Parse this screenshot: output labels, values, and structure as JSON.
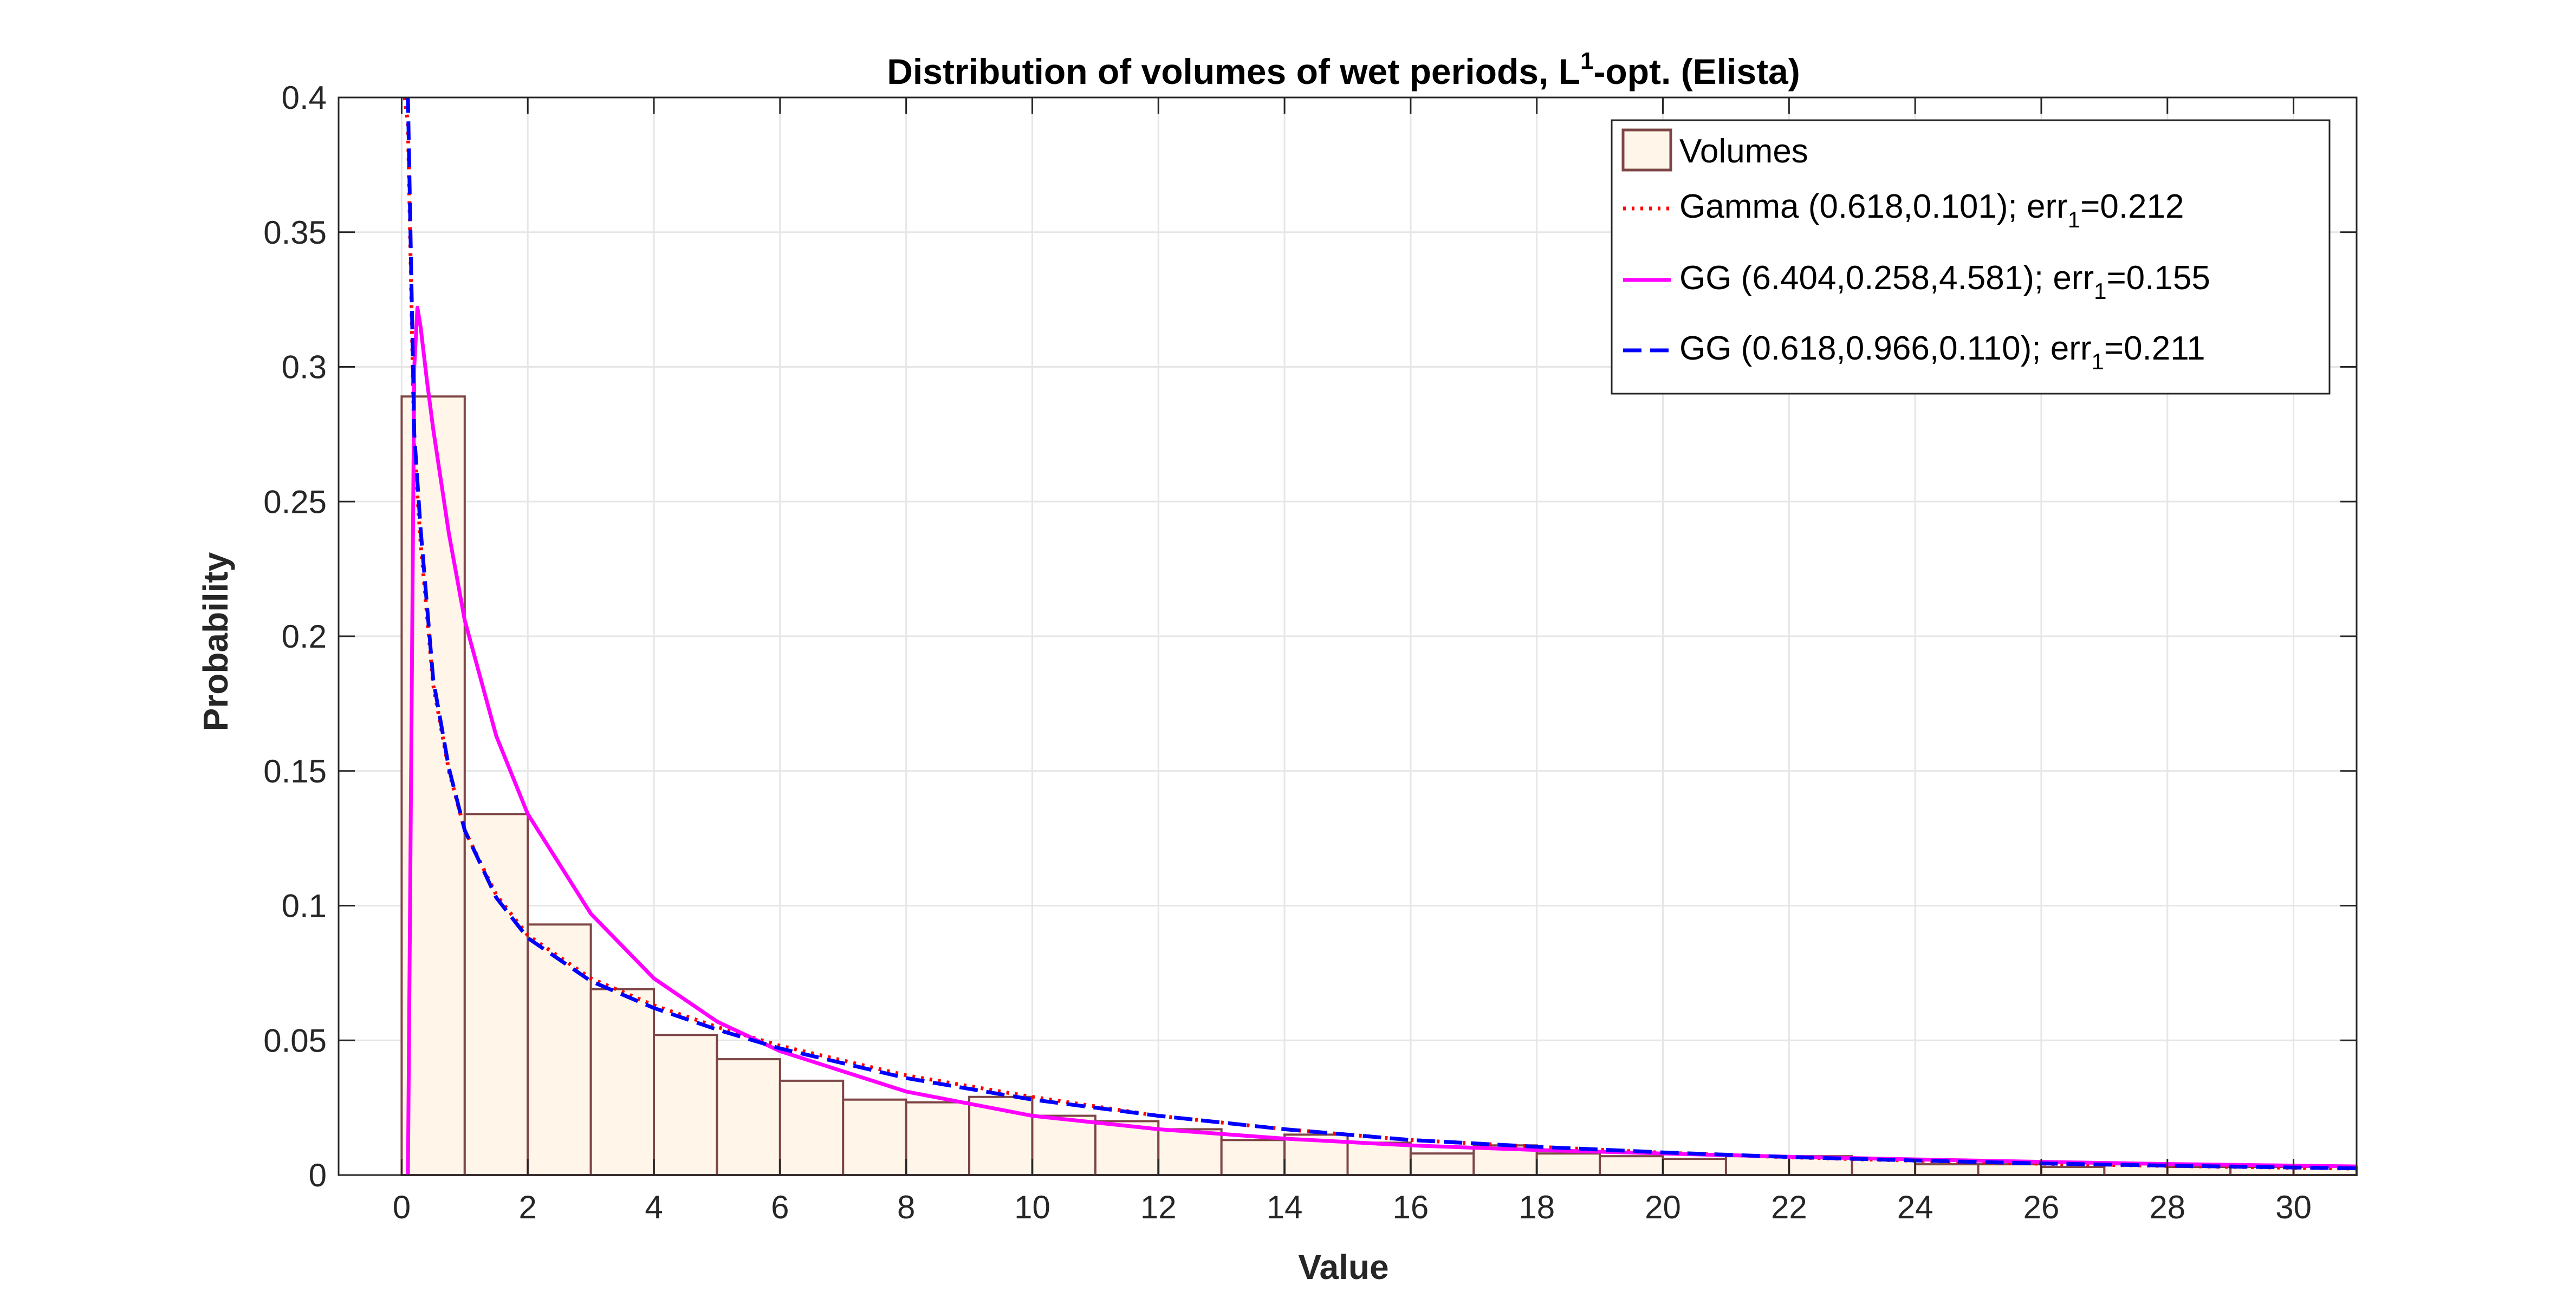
{
  "chart_data": {
    "type": "bar",
    "title": {
      "main": "Distribution of volumes of wet periods, L",
      "superscript": "1",
      "suffix": "-opt. (Elista)"
    },
    "xlabel": "Value",
    "ylabel": "Probability",
    "xlim": [
      -1,
      31
    ],
    "ylim": [
      0,
      0.4
    ],
    "xticks": [
      0,
      2,
      4,
      6,
      8,
      10,
      12,
      14,
      16,
      18,
      20,
      22,
      24,
      26,
      28,
      30
    ],
    "yticks": [
      0,
      0.05,
      0.1,
      0.15,
      0.2,
      0.25,
      0.3,
      0.35,
      0.4
    ],
    "ytick_labels": [
      "0",
      "0.05",
      "0.1",
      "0.15",
      "0.2",
      "0.25",
      "0.3",
      "0.35",
      "0.4"
    ],
    "grid": true,
    "legend_position": "top-right",
    "histogram": {
      "name": "Volumes",
      "bin_width": 1,
      "bin_start": 0,
      "values": [
        0.289,
        0.134,
        0.093,
        0.069,
        0.052,
        0.043,
        0.035,
        0.028,
        0.027,
        0.029,
        0.022,
        0.02,
        0.017,
        0.013,
        0.015,
        0.012,
        0.008,
        0.011,
        0.008,
        0.007,
        0.006,
        0.007,
        0.007,
        0.006,
        0.004,
        0.004,
        0.003,
        0.004,
        0.003,
        0.003,
        0.003
      ],
      "fill": "#FFF5E8",
      "edge": "#7E4646"
    },
    "series": [
      {
        "legend_label": "Gamma (0.618,0.101); err",
        "legend_sub": "1",
        "legend_tail": "=0.212",
        "color": "#FF0000",
        "style": "dotted",
        "x": [
          0.05,
          0.1,
          0.2,
          0.3,
          0.5,
          0.75,
          1,
          1.5,
          2,
          3,
          4,
          5,
          6,
          8,
          10,
          12,
          14,
          16,
          18,
          20,
          22,
          24,
          26,
          28,
          30,
          31
        ],
        "y": [
          0.4,
          0.39,
          0.27,
          0.235,
          0.182,
          0.15,
          0.128,
          0.104,
          0.089,
          0.073,
          0.063,
          0.055,
          0.048,
          0.037,
          0.029,
          0.022,
          0.017,
          0.013,
          0.0105,
          0.0083,
          0.0066,
          0.0053,
          0.0042,
          0.0034,
          0.0027,
          0.0024
        ]
      },
      {
        "legend_label": "GG (6.404,0.258,4.581); err",
        "legend_sub": "1",
        "legend_tail": "=0.155",
        "color": "#FF00FF",
        "style": "solid",
        "x": [
          0.1,
          0.15,
          0.2,
          0.25,
          0.3,
          0.4,
          0.5,
          0.75,
          1,
          1.5,
          2,
          3,
          4,
          5,
          6,
          8,
          10,
          12,
          14,
          16,
          18,
          20,
          22,
          24,
          26,
          28,
          30,
          31
        ],
        "y": [
          0,
          0.15,
          0.3,
          0.322,
          0.315,
          0.295,
          0.277,
          0.238,
          0.206,
          0.163,
          0.134,
          0.097,
          0.073,
          0.057,
          0.046,
          0.031,
          0.022,
          0.017,
          0.0135,
          0.011,
          0.0093,
          0.008,
          0.0068,
          0.0058,
          0.0049,
          0.0041,
          0.0035,
          0.0032
        ]
      },
      {
        "legend_label": "GG (0.618,0.966,0.110); err",
        "legend_sub": "1",
        "legend_tail": "=0.211",
        "color": "#0000FF",
        "style": "dashed",
        "x": [
          0.05,
          0.1,
          0.2,
          0.3,
          0.5,
          0.75,
          1,
          1.5,
          2,
          3,
          4,
          5,
          6,
          8,
          10,
          12,
          14,
          16,
          18,
          20,
          22,
          24,
          26,
          28,
          30,
          31
        ],
        "y": [
          0.4,
          0.4,
          0.275,
          0.24,
          0.184,
          0.151,
          0.128,
          0.103,
          0.088,
          0.072,
          0.062,
          0.054,
          0.047,
          0.036,
          0.028,
          0.022,
          0.017,
          0.013,
          0.0105,
          0.0084,
          0.0067,
          0.0054,
          0.0043,
          0.0035,
          0.0028,
          0.0025
        ]
      }
    ]
  }
}
